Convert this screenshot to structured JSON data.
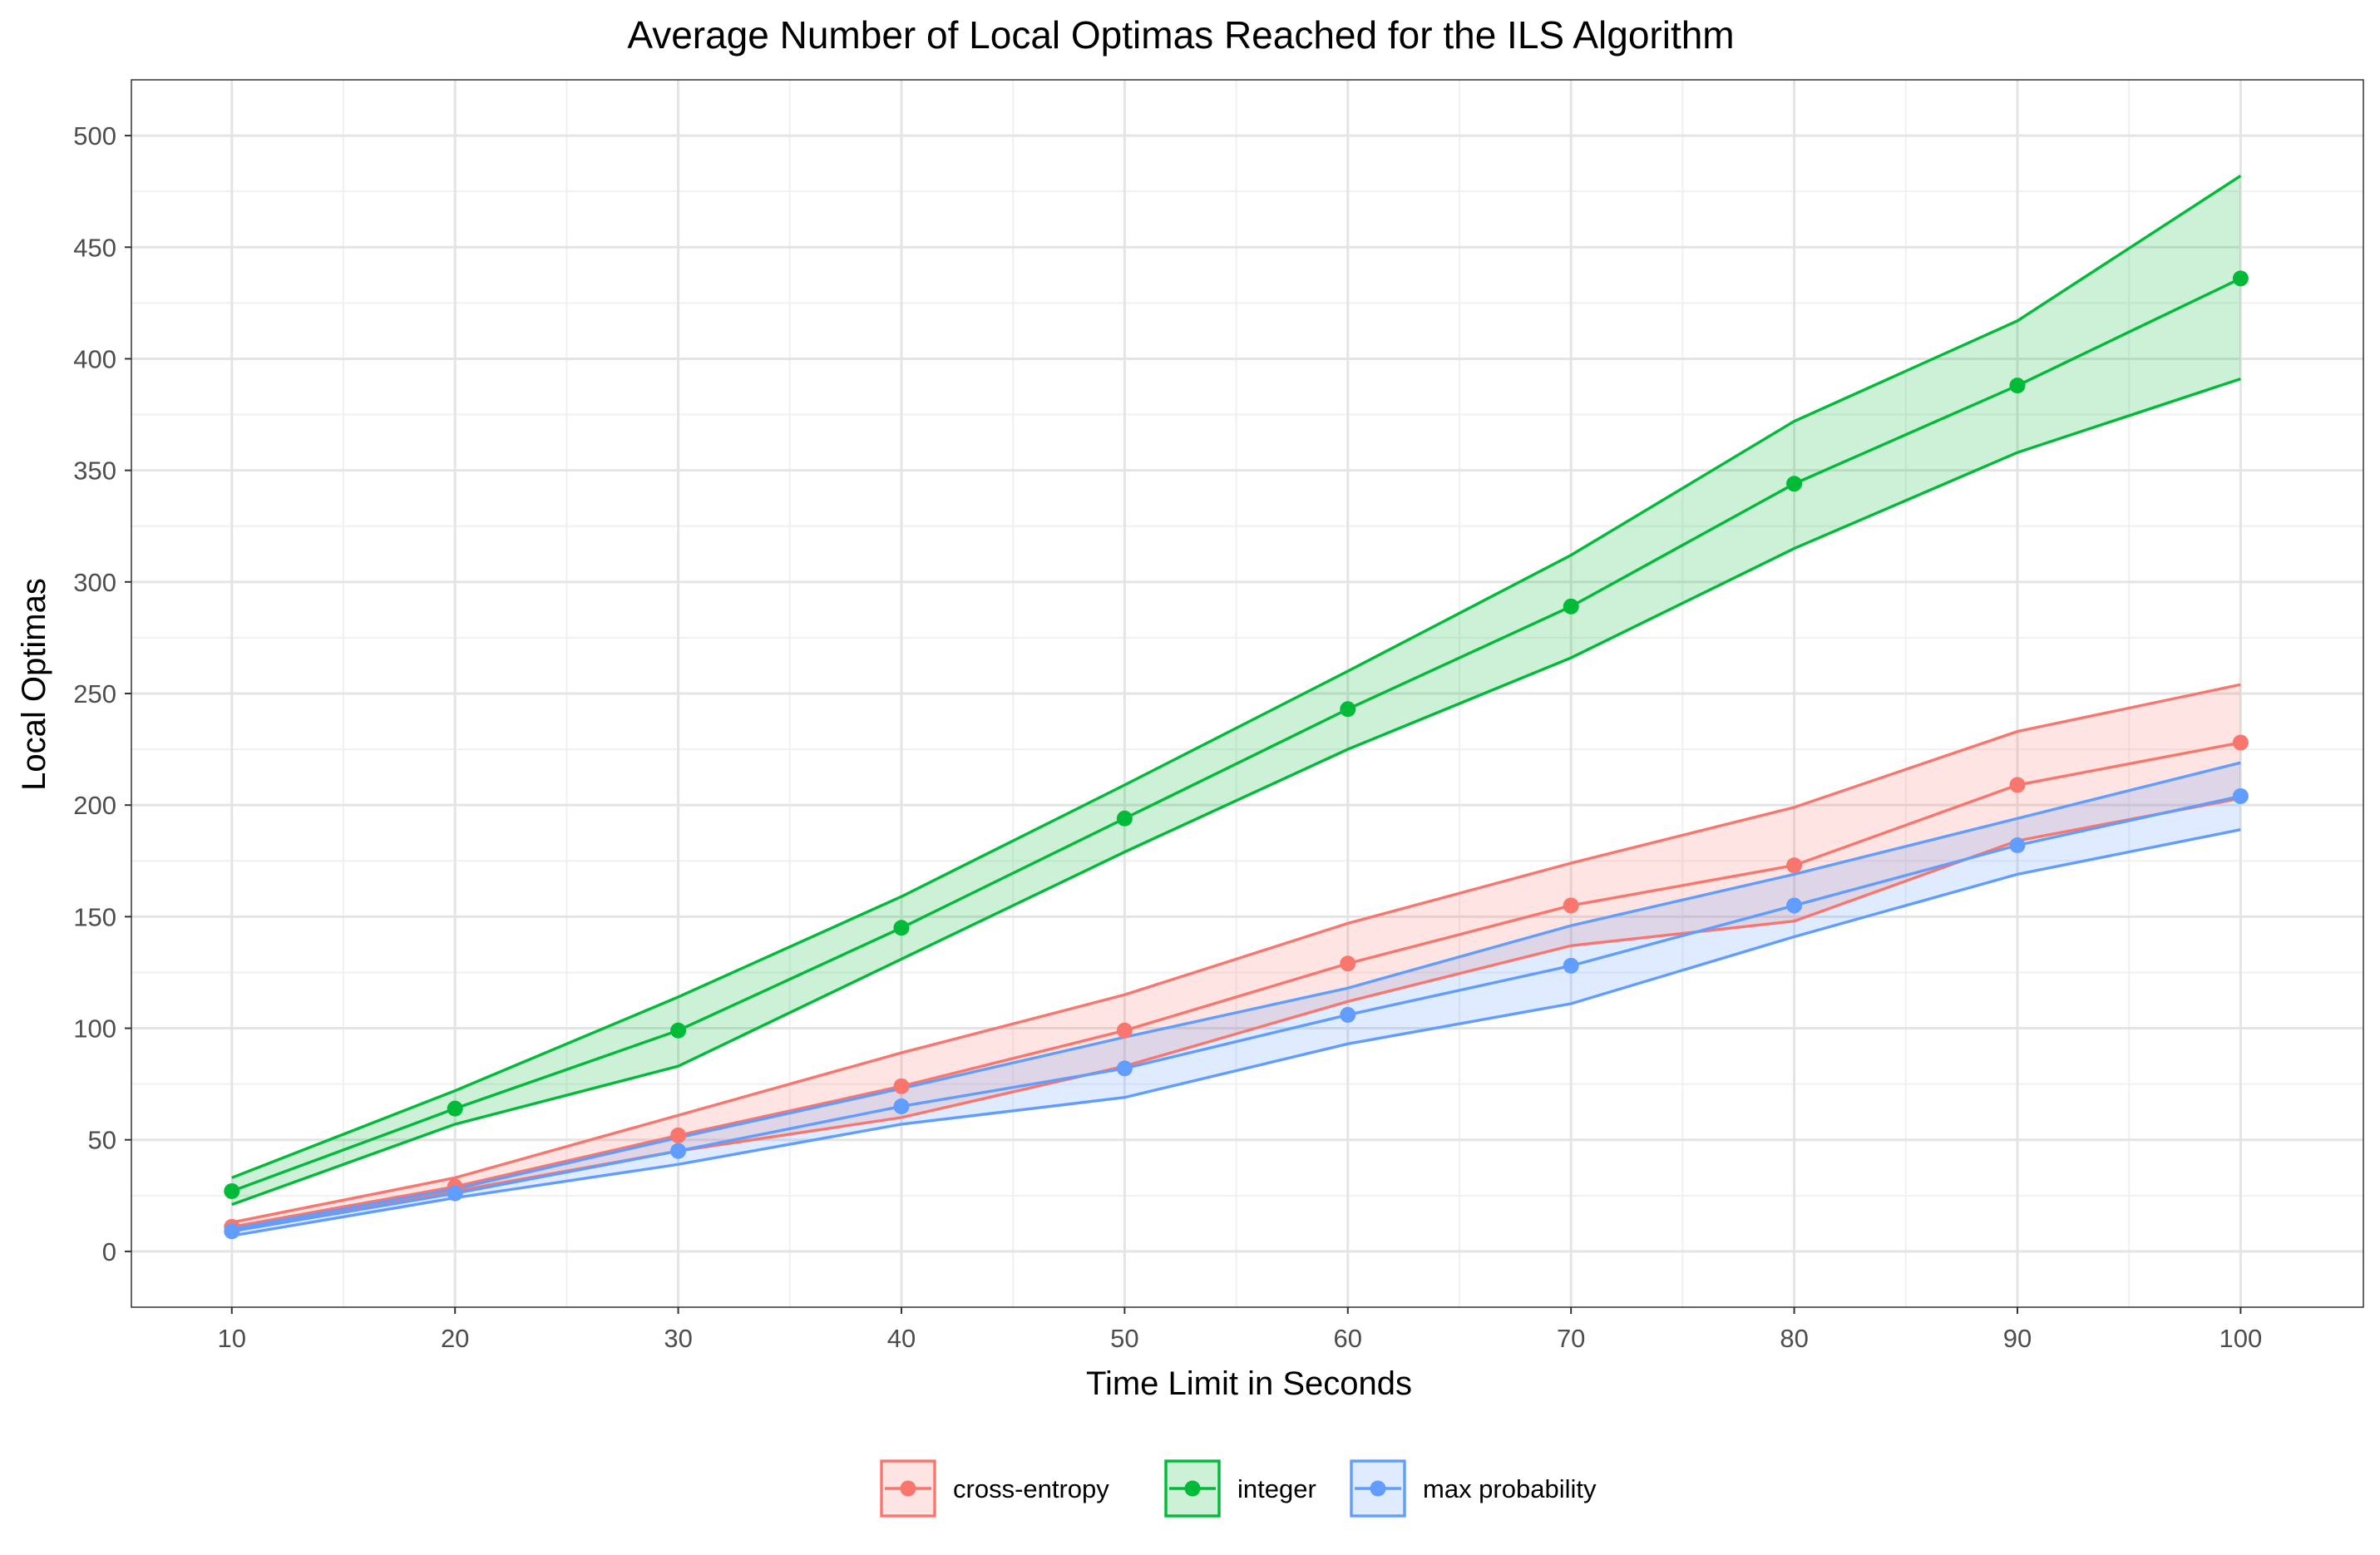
{
  "chart_data": {
    "type": "line",
    "title": "Average Number of Local Optimas Reached for the ILS Algorithm",
    "xlabel": "Time Limit in Seconds",
    "ylabel": "Local Optimas",
    "x": [
      10,
      20,
      30,
      40,
      50,
      60,
      70,
      80,
      90,
      100
    ],
    "xticks": [
      "10",
      "20",
      "30",
      "40",
      "50",
      "60",
      "70",
      "80",
      "90",
      "100"
    ],
    "yticks": [
      "0",
      "50",
      "100",
      "150",
      "200",
      "250",
      "300",
      "350",
      "400",
      "450",
      "500"
    ],
    "xlim": [
      5.5,
      105.5
    ],
    "ylim": [
      -25,
      525
    ],
    "grid": true,
    "legend_position": "bottom",
    "series": [
      {
        "name": "cross-entropy",
        "color": "#F8766D",
        "values": [
          11,
          29,
          52,
          74,
          99,
          129,
          155,
          173,
          209,
          228
        ],
        "lower": [
          10,
          27,
          45,
          60,
          83,
          112,
          137,
          148,
          184,
          203
        ],
        "upper": [
          13,
          33,
          61,
          89,
          115,
          147,
          174,
          199,
          233,
          254
        ]
      },
      {
        "name": "integer",
        "color": "#00BA38",
        "values": [
          27,
          64,
          99,
          145,
          194,
          243,
          289,
          344,
          388,
          436
        ],
        "lower": [
          21,
          57,
          83,
          131,
          179,
          225,
          266,
          315,
          358,
          391
        ],
        "upper": [
          33,
          72,
          114,
          159,
          209,
          260,
          312,
          372,
          417,
          482
        ]
      },
      {
        "name": "max probability",
        "color": "#619CFF",
        "values": [
          9,
          26,
          45,
          65,
          82,
          106,
          128,
          155,
          182,
          204
        ],
        "lower": [
          7,
          24,
          39,
          57,
          69,
          93,
          111,
          141,
          169,
          189
        ],
        "upper": [
          10,
          28,
          51,
          73,
          96,
          118,
          146,
          169,
          194,
          219
        ]
      }
    ]
  }
}
